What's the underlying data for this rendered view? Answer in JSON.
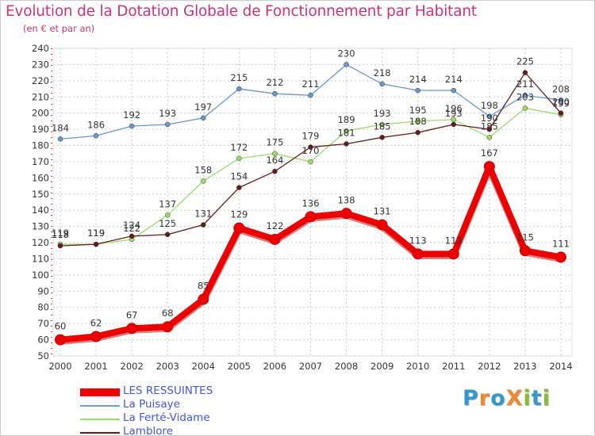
{
  "header": {
    "title": "Evolution de la Dotation Globale de Fonctionnement par Habitant",
    "subtitle": "(en € et par an)"
  },
  "brand": {
    "text": "ProXiti",
    "letters": [
      "P",
      "r",
      "o",
      "X",
      "i",
      "t",
      "i"
    ],
    "colors": [
      "#3399cc",
      "#ee8833",
      "#3399cc",
      "#ee8833",
      "#88bb33",
      "#3399cc",
      "#88bb33"
    ]
  },
  "chart_data": {
    "type": "line",
    "title": "Evolution de la Dotation Globale de Fonctionnement par Habitant",
    "subtitle": "(en € et par an)",
    "x": [
      "2000",
      "2001",
      "2002",
      "2003",
      "2004",
      "2005",
      "2006",
      "2007",
      "2008",
      "2009",
      "2010",
      "2011",
      "2012",
      "2013",
      "2014"
    ],
    "ylim": [
      50,
      240
    ],
    "yticks": [
      50,
      60,
      70,
      80,
      90,
      100,
      110,
      120,
      130,
      140,
      150,
      160,
      170,
      180,
      190,
      200,
      210,
      220,
      230,
      240
    ],
    "grid": "horizontal and vertical dashed",
    "legend_position": "bottom-left",
    "series": [
      {
        "name": "LES RESSUINTES",
        "color": "#ee0000",
        "values": [
          60,
          62,
          67,
          68,
          85,
          129,
          122,
          136,
          138,
          131,
          113,
          113,
          167,
          115,
          111
        ]
      },
      {
        "name": "La Puisaye",
        "color": "#6699cc",
        "values": [
          184,
          186,
          192,
          193,
          197,
          215,
          212,
          211,
          230,
          218,
          214,
          214,
          198,
          211,
          208
        ]
      },
      {
        "name": "La Ferté-Vidame",
        "color": "#99dd66",
        "values": [
          119,
          119,
          122,
          137,
          158,
          172,
          175,
          170,
          189,
          193,
          195,
          196,
          185,
          203,
          199
        ]
      },
      {
        "name": "Lamblore",
        "color": "#661a1a",
        "values": [
          118,
          119,
          124,
          125,
          131,
          154,
          164,
          179,
          181,
          185,
          188,
          193,
          190,
          225,
          200
        ]
      }
    ]
  }
}
